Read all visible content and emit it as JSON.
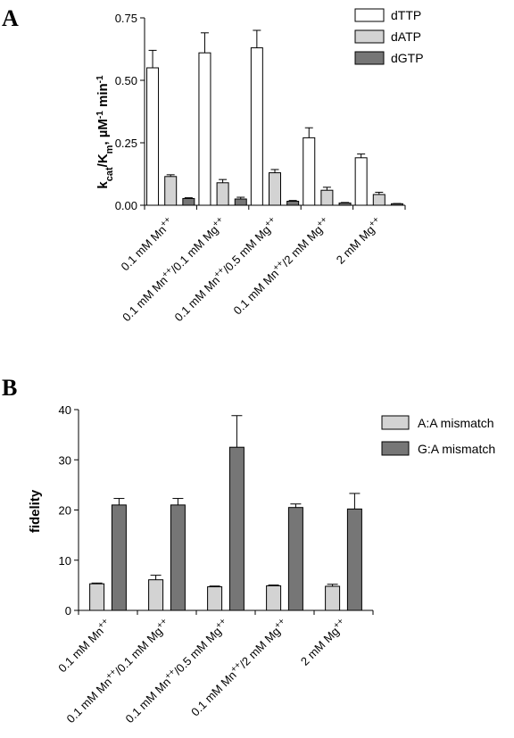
{
  "chart_data": [
    {
      "type": "bar",
      "panel": "A",
      "ylabel": "k_cat/K_m, µM⁻¹ min⁻¹",
      "ylabel_parts": {
        "k": "k",
        "cat": "cat",
        "slash": "/K",
        "m": "m",
        "unit": ", µM",
        "exp": "-1",
        "min": " min",
        "exp2": "-1"
      },
      "ylim": [
        0,
        0.75
      ],
      "yticks": [
        "0.00",
        "0.25",
        "0.50",
        "0.75"
      ],
      "ytick_values": [
        0,
        0.25,
        0.5,
        0.75
      ],
      "categories": [
        {
          "base": "0.1 mM Mn",
          "sup": "++",
          "rest": "",
          "sup2": ""
        },
        {
          "base": "0.1 mM Mn",
          "sup": "++",
          "rest": "/0.1 mM Mg",
          "sup2": "++"
        },
        {
          "base": "0.1 mM Mn",
          "sup": "++",
          "rest": "/0.5 mM Mg",
          "sup2": "++"
        },
        {
          "base": "0.1 mM Mn",
          "sup": "++",
          "rest": "/2 mM Mg",
          "sup2": "++"
        },
        {
          "base": "2 mM Mg",
          "sup": "++",
          "rest": "",
          "sup2": ""
        }
      ],
      "series": [
        {
          "name": "dTTP",
          "color": "#ffffff",
          "values": [
            0.55,
            0.61,
            0.63,
            0.27,
            0.19
          ],
          "errors": [
            0.07,
            0.08,
            0.07,
            0.04,
            0.015
          ]
        },
        {
          "name": "dATP",
          "color": "#d3d3d3",
          "values": [
            0.115,
            0.09,
            0.13,
            0.06,
            0.043
          ],
          "errors": [
            0.007,
            0.013,
            0.013,
            0.012,
            0.009
          ]
        },
        {
          "name": "dGTP",
          "color": "#767676",
          "values": [
            0.027,
            0.025,
            0.016,
            0.009,
            0.006
          ],
          "errors": [
            0.003,
            0.007,
            0.003,
            0.002,
            0.001
          ]
        }
      ],
      "legend_position": "top-right",
      "grid": false
    },
    {
      "type": "bar",
      "panel": "B",
      "ylabel": "fidelity",
      "ylim": [
        0,
        40
      ],
      "yticks": [
        "0",
        "10",
        "20",
        "30",
        "40"
      ],
      "ytick_values": [
        0,
        10,
        20,
        30,
        40
      ],
      "categories": [
        {
          "base": "0.1 mM Mn",
          "sup": "++",
          "rest": "",
          "sup2": ""
        },
        {
          "base": "0.1 mM Mn",
          "sup": "++",
          "rest": "/0.1 mM Mg",
          "sup2": "++"
        },
        {
          "base": "0.1 mM Mn",
          "sup": "++",
          "rest": "/0.5 mM Mg",
          "sup2": "++"
        },
        {
          "base": "0.1 mM Mn",
          "sup": "++",
          "rest": "/2 mM Mg",
          "sup2": "++"
        },
        {
          "base": "2 mM Mg",
          "sup": "++",
          "rest": "",
          "sup2": ""
        }
      ],
      "series": [
        {
          "name": "A:A mismatch",
          "color": "#d3d3d3",
          "values": [
            5.3,
            6.1,
            4.7,
            4.9,
            4.8
          ],
          "errors": [
            0.15,
            0.9,
            0.15,
            0.15,
            0.4
          ]
        },
        {
          "name": "G:A mismatch",
          "color": "#767676",
          "values": [
            21.0,
            21.0,
            32.5,
            20.5,
            20.2
          ],
          "errors": [
            1.3,
            1.3,
            6.3,
            0.7,
            3.1
          ]
        }
      ],
      "legend_position": "top-right",
      "grid": false
    }
  ]
}
